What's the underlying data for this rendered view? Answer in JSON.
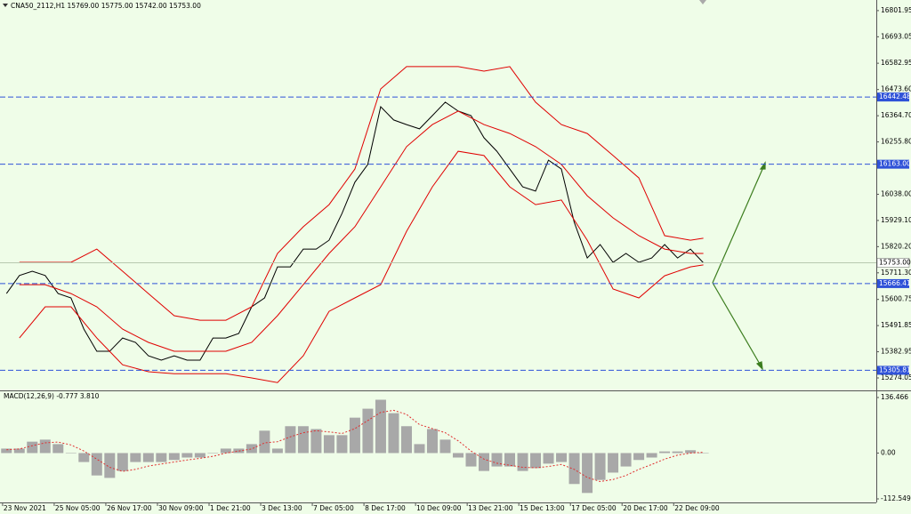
{
  "chart_data": [
    {
      "type": "line",
      "title": "CNA50_2112,H1  15769.00 15775.00 15742.00 15753.00",
      "xlim": [
        -15,
        664
      ],
      "ylim": [
        15226,
        16846
      ],
      "yticks": [
        16801.95,
        16693.05,
        16582.95,
        {
          "value": 16473.6,
          "label": "16473.60"
        },
        {
          "value": 16364.7,
          "label": "16364.70"
        },
        {
          "value": 16255.8,
          "label": "16255.80"
        },
        {
          "value": 16038,
          "label": "16038.00"
        },
        {
          "value": 15929.1,
          "label": "15929.10"
        },
        {
          "value": 15820.2,
          "label": "15820.20"
        },
        {
          "value": 15711.3,
          "label": "15711.30"
        },
        15600.75,
        15491.85,
        15382.95,
        15274.05
      ],
      "x": [
        -10,
        0,
        10,
        20,
        30,
        40,
        50,
        60,
        70,
        80,
        90,
        100,
        110,
        120,
        130,
        140,
        150,
        160,
        170,
        180,
        190,
        200,
        210,
        220,
        230,
        240,
        250,
        260,
        270,
        280,
        290,
        300,
        310,
        320,
        330,
        340,
        350,
        360,
        370,
        380,
        390,
        400,
        410,
        420,
        430,
        440,
        450,
        460,
        470,
        480,
        490,
        500,
        510,
        520,
        530
      ],
      "series": [
        {
          "color": "#000000",
          "values": [
            15625,
            15700,
            15718,
            15700,
            15625,
            15607,
            15477,
            15385,
            15385,
            15440,
            15422,
            15366,
            15348,
            15366,
            15348,
            15348,
            15440,
            15440,
            15459,
            15570,
            15607,
            15736,
            15736,
            15810,
            15810,
            15847,
            15958,
            16088,
            16162,
            16402,
            16347,
            16328,
            16310,
            16365,
            16421,
            16384,
            16365,
            16273,
            16217,
            16143,
            16069,
            16051,
            16180,
            16143,
            15921,
            15773,
            15829,
            15755,
            15792,
            15755,
            15773,
            15829,
            15773,
            15810,
            15753
          ]
        },
        {
          "color": "#e00000",
          "x": [
            0,
            20,
            40,
            60,
            80,
            100,
            120,
            140,
            160,
            180,
            200,
            220,
            240,
            260,
            280,
            300,
            320,
            340,
            360,
            380,
            400,
            420,
            440,
            460,
            480,
            500,
            520,
            530
          ],
          "values": [
            15755,
            15755,
            15755,
            15810,
            15718,
            15625,
            15533,
            15514,
            15514,
            15570,
            15792,
            15903,
            15995,
            16143,
            16476,
            16569,
            16569,
            16569,
            16550,
            16569,
            16421,
            16328,
            16291,
            16199,
            16106,
            15866,
            15847,
            15855
          ]
        },
        {
          "color": "#e00000",
          "x": [
            0,
            20,
            40,
            60,
            80,
            100,
            120,
            140,
            160,
            180,
            200,
            220,
            240,
            260,
            280,
            300,
            320,
            340,
            360,
            380,
            400,
            420,
            440,
            460,
            480,
            500,
            520,
            530
          ],
          "values": [
            15662,
            15662,
            15625,
            15570,
            15477,
            15422,
            15385,
            15385,
            15385,
            15422,
            15533,
            15662,
            15792,
            15903,
            16069,
            16236,
            16328,
            16384,
            16328,
            16291,
            16236,
            16162,
            16032,
            15940,
            15866,
            15810,
            15792,
            15792
          ]
        },
        {
          "color": "#e00000",
          "x": [
            0,
            20,
            40,
            60,
            80,
            100,
            120,
            140,
            160,
            180,
            200,
            220,
            240,
            260,
            280,
            300,
            320,
            340,
            360,
            380,
            400,
            420,
            440,
            460,
            480,
            500,
            520,
            530
          ],
          "values": [
            15440,
            15570,
            15570,
            15440,
            15329,
            15300,
            15292,
            15292,
            15292,
            15274,
            15255,
            15366,
            15551,
            15607,
            15662,
            15884,
            16069,
            16217,
            16199,
            16069,
            15995,
            16014,
            15847,
            15644,
            15607,
            15699,
            15736,
            15744
          ]
        }
      ],
      "level_color": "#2f52d8",
      "levels": [
        16442.48,
        {
          "value": 16163,
          "label": "16163.00"
        },
        15666.41,
        15305.81
      ],
      "last_price": {
        "value": 15753,
        "label": "15753.00"
      }
    },
    {
      "type": "bar",
      "title": "MACD(12,26,9) -0.777 3.810",
      "xlim": [
        -15,
        664
      ],
      "ylim": [
        -121.3,
        149.6
      ],
      "yticks": [
        136.466,
        {
          "value": 0,
          "label": "0.00"
        },
        -112.549
      ],
      "xticks": [
        {
          "value": -13,
          "label": "23 Nov 2021"
        },
        {
          "value": 27,
          "label": "25 Nov 05:00"
        },
        {
          "value": 67,
          "label": "26 Nov 17:00"
        },
        {
          "value": 107,
          "label": "30 Nov 09:00"
        },
        {
          "value": 147,
          "label": "1 Dec 21:00"
        },
        {
          "value": 187,
          "label": "3 Dec 13:00"
        },
        {
          "value": 227,
          "label": "7 Dec 05:00"
        },
        {
          "value": 267,
          "label": "8 Dec 17:00"
        },
        {
          "value": 307,
          "label": "10 Dec 09:00"
        },
        {
          "value": 347,
          "label": "13 Dec 21:00"
        },
        {
          "value": 387,
          "label": "15 Dec 13:00"
        },
        {
          "value": 427,
          "label": "17 Dec 05:00"
        },
        {
          "value": 467,
          "label": "20 Dec 17:00"
        },
        {
          "value": 507,
          "label": "22 Dec 09:00"
        }
      ],
      "x": [
        -10,
        0,
        10,
        20,
        30,
        40,
        50,
        60,
        70,
        80,
        90,
        100,
        110,
        120,
        130,
        140,
        150,
        160,
        170,
        180,
        190,
        200,
        210,
        220,
        230,
        240,
        250,
        260,
        270,
        280,
        290,
        300,
        310,
        320,
        330,
        340,
        350,
        360,
        370,
        380,
        390,
        400,
        410,
        420,
        430,
        440,
        450,
        460,
        470,
        480,
        490,
        500,
        510,
        520,
        530
      ],
      "color": "#a8a8a8",
      "values": [
        11,
        11,
        28,
        33,
        22,
        0,
        -22,
        -55,
        -61,
        -44,
        -22,
        -22,
        -22,
        -17,
        -11,
        -11,
        0,
        11,
        11,
        22,
        55,
        11,
        66,
        66,
        59,
        44,
        44,
        87,
        109,
        131,
        98,
        66,
        22,
        59,
        33,
        -11,
        -33,
        -44,
        -33,
        -33,
        -44,
        -37,
        -26,
        -22,
        -76,
        -98,
        -66,
        -48,
        -33,
        -17,
        -11,
        4,
        4,
        7,
        0
      ],
      "signal": {
        "color": "#e03030",
        "values": [
          8,
          10,
          18,
          25,
          27,
          20,
          5,
          -15,
          -35,
          -45,
          -40,
          -32,
          -27,
          -22,
          -17,
          -13,
          -8,
          0,
          5,
          10,
          25,
          28,
          40,
          50,
          55,
          52,
          48,
          60,
          80,
          100,
          105,
          95,
          70,
          60,
          50,
          30,
          5,
          -15,
          -25,
          -30,
          -35,
          -36,
          -33,
          -28,
          -40,
          -60,
          -70,
          -65,
          -55,
          -40,
          -28,
          -15,
          -5,
          0,
          2
        ]
      }
    }
  ]
}
